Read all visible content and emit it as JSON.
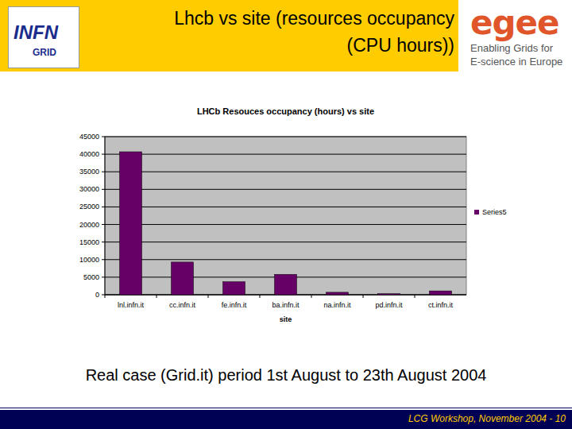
{
  "chart_data": {
    "type": "bar",
    "title": "LHCb Resouces occupancy (hours) vs site",
    "x_label": "site",
    "categories": [
      "lnl.infn.it",
      "cc.infn.it",
      "fe.infn.it",
      "ba.infn.it",
      "na.infn.it",
      "pd.infn.it",
      "ct.infn.it"
    ],
    "series": [
      {
        "name": "Series5",
        "color": "#660066",
        "values": [
          40700,
          9300,
          3700,
          5800,
          700,
          300,
          1100
        ]
      }
    ],
    "ylim": [
      0,
      45000
    ],
    "yticks": [
      0,
      5000,
      10000,
      15000,
      20000,
      25000,
      30000,
      35000,
      40000,
      45000
    ],
    "grid": true,
    "legend": "right"
  },
  "slide": {
    "title": [
      "Lhcb vs site (resources occupancy",
      "(CPU hours))"
    ],
    "logo_left": [
      "INFN",
      "GRID"
    ],
    "logo_right": {
      "name": "egee",
      "tagline": [
        "Enabling Grids for",
        "E-science in Europe"
      ]
    },
    "caption": "Real case (Grid.it) period 1st August to 23th August 2004",
    "footer": "LCG Workshop, November 2004 - 10"
  }
}
